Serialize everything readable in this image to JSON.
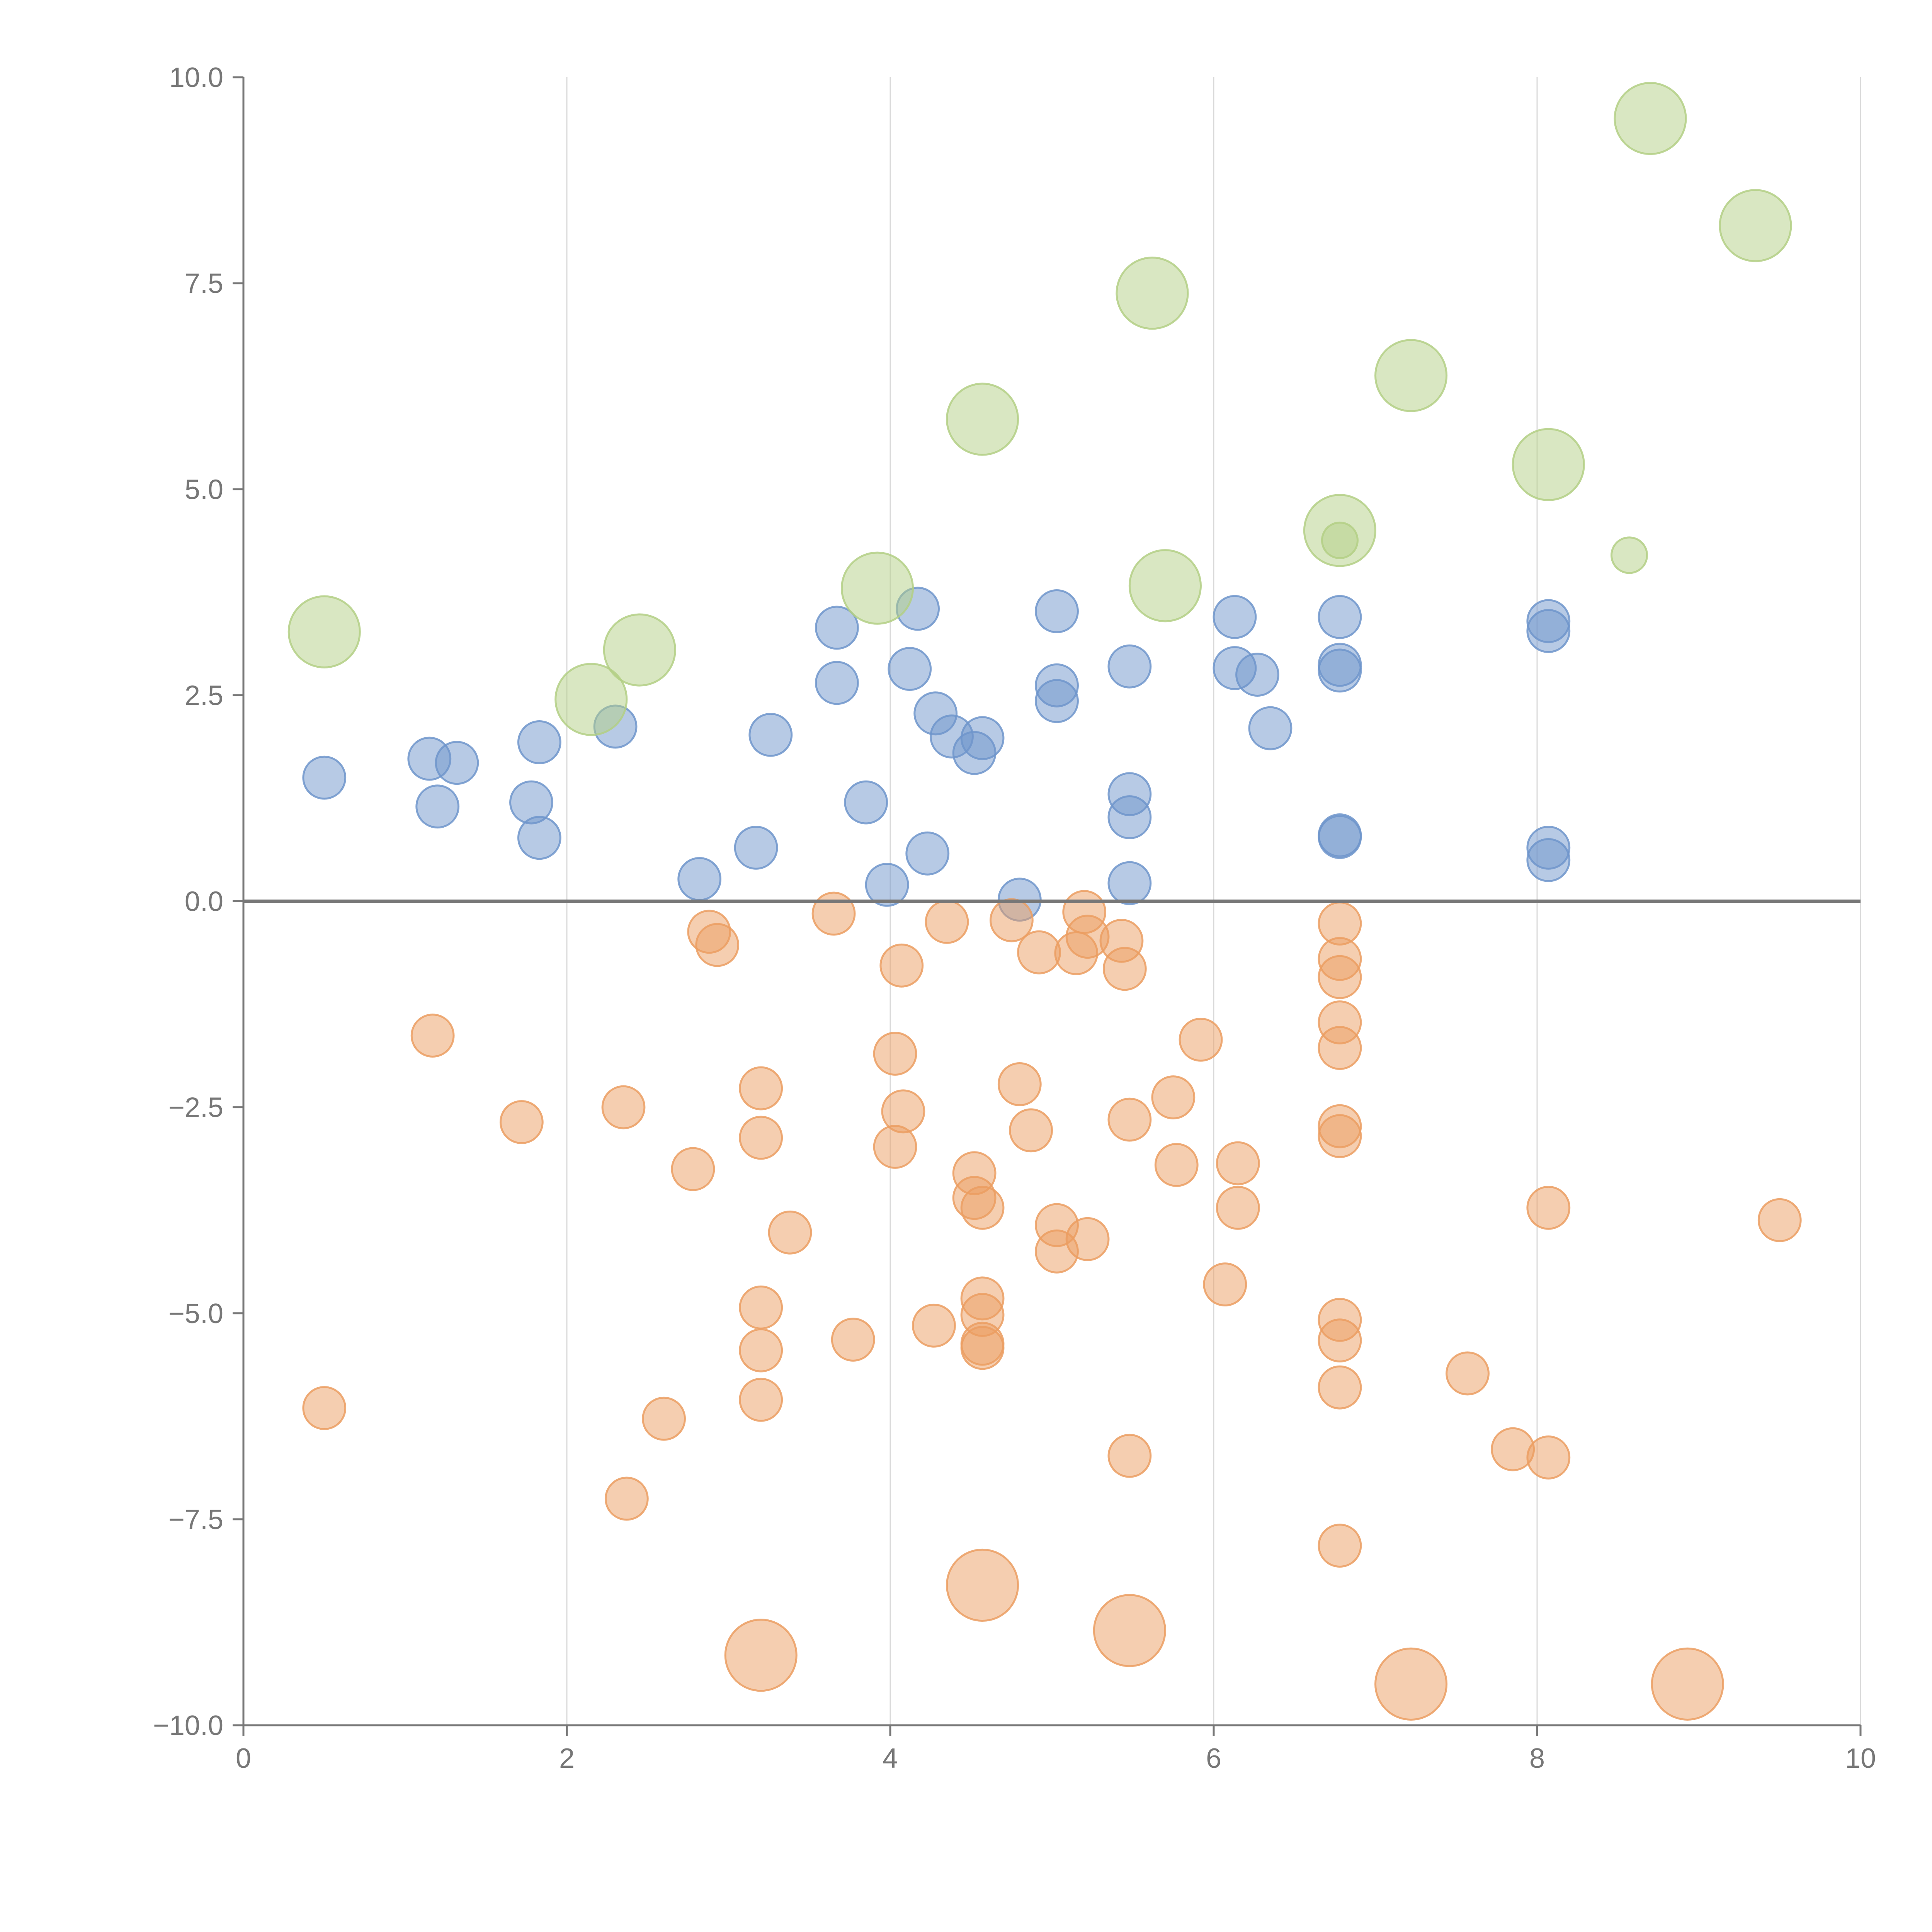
{
  "chart_data": {
    "type": "scatter",
    "title": "",
    "xlabel": "",
    "ylabel": "",
    "xlim": [
      0,
      10
    ],
    "ylim": [
      -10,
      10
    ],
    "x_ticks": [
      0,
      2,
      4,
      6,
      8,
      10
    ],
    "x_tick_labels": [
      "0",
      "2",
      "4",
      "6",
      "8",
      "10"
    ],
    "y_ticks": [
      -10,
      -7.5,
      -5,
      -2.5,
      0,
      2.5,
      5,
      7.5,
      10
    ],
    "y_tick_labels": [
      "−10.0",
      "−7.5",
      "−5.0",
      "−2.5",
      "0.0",
      "2.5",
      "5.0",
      "7.5",
      "10.0"
    ],
    "vertical_grid": true,
    "horizontal_grid": false,
    "zero_line": true,
    "series": [
      {
        "name": "blue",
        "color": "#6f95cb",
        "points": [
          [
            0.5,
            1.5,
            0.13
          ],
          [
            1.15,
            1.73,
            0.13
          ],
          [
            1.32,
            1.68,
            0.13
          ],
          [
            1.2,
            1.15,
            0.13
          ],
          [
            1.78,
            1.2,
            0.13
          ],
          [
            1.83,
            1.93,
            0.13
          ],
          [
            1.83,
            0.77,
            0.13
          ],
          [
            2.3,
            2.12,
            0.13
          ],
          [
            2.82,
            0.27,
            0.13
          ],
          [
            3.17,
            0.65,
            0.13
          ],
          [
            3.26,
            2.02,
            0.13
          ],
          [
            3.67,
            3.32,
            0.13
          ],
          [
            3.67,
            2.65,
            0.13
          ],
          [
            3.85,
            1.2,
            0.13
          ],
          [
            3.98,
            0.2,
            0.13
          ],
          [
            4.12,
            2.82,
            0.13
          ],
          [
            4.17,
            3.55,
            0.13
          ],
          [
            4.23,
            0.58,
            0.13
          ],
          [
            4.28,
            2.28,
            0.13
          ],
          [
            4.38,
            2.0,
            0.13
          ],
          [
            4.52,
            1.8,
            0.13
          ],
          [
            4.57,
            1.98,
            0.13
          ],
          [
            4.8,
            0.02,
            0.13
          ],
          [
            5.03,
            3.52,
            0.13
          ],
          [
            5.03,
            2.62,
            0.13
          ],
          [
            5.03,
            2.43,
            0.13
          ],
          [
            5.48,
            2.85,
            0.13
          ],
          [
            5.48,
            1.3,
            0.13
          ],
          [
            5.48,
            1.02,
            0.13
          ],
          [
            5.48,
            0.22,
            0.13
          ],
          [
            6.13,
            2.83,
            0.13
          ],
          [
            6.13,
            3.45,
            0.13
          ],
          [
            6.27,
            2.75,
            0.13
          ],
          [
            6.35,
            2.1,
            0.13
          ],
          [
            6.78,
            3.45,
            0.13
          ],
          [
            6.78,
            2.87,
            0.13
          ],
          [
            6.78,
            2.8,
            0.13
          ],
          [
            6.78,
            0.8,
            0.13
          ],
          [
            6.78,
            0.78,
            0.13
          ],
          [
            8.07,
            3.4,
            0.13
          ],
          [
            8.07,
            3.28,
            0.13
          ],
          [
            8.07,
            0.65,
            0.13
          ],
          [
            8.07,
            0.5,
            0.13
          ]
        ]
      },
      {
        "name": "orange",
        "color": "#eb9d62",
        "points": [
          [
            0.5,
            -6.15,
            0.13
          ],
          [
            1.17,
            -1.63,
            0.13
          ],
          [
            1.72,
            -2.68,
            0.13
          ],
          [
            2.35,
            -2.5,
            0.13
          ],
          [
            2.37,
            -7.25,
            0.13
          ],
          [
            2.6,
            -6.28,
            0.13
          ],
          [
            2.78,
            -3.25,
            0.13
          ],
          [
            2.88,
            -0.37,
            0.13
          ],
          [
            2.93,
            -0.53,
            0.13
          ],
          [
            3.2,
            -2.27,
            0.13
          ],
          [
            3.2,
            -2.87,
            0.13
          ],
          [
            3.2,
            -4.93,
            0.13
          ],
          [
            3.2,
            -5.45,
            0.13
          ],
          [
            3.2,
            -6.05,
            0.13
          ],
          [
            3.38,
            -4.02,
            0.13
          ],
          [
            3.65,
            -0.15,
            0.13
          ],
          [
            3.77,
            -5.32,
            0.13
          ],
          [
            4.03,
            -1.85,
            0.13
          ],
          [
            4.03,
            -2.98,
            0.13
          ],
          [
            4.07,
            -0.78,
            0.13
          ],
          [
            4.08,
            -2.55,
            0.13
          ],
          [
            4.27,
            -5.15,
            0.13
          ],
          [
            4.35,
            -0.25,
            0.13
          ],
          [
            4.52,
            -3.3,
            0.13
          ],
          [
            4.52,
            -3.6,
            0.13
          ],
          [
            4.57,
            -3.72,
            0.13
          ],
          [
            4.57,
            -4.82,
            0.13
          ],
          [
            4.57,
            -5.02,
            0.13
          ],
          [
            4.57,
            -5.37,
            0.13
          ],
          [
            4.57,
            -5.42,
            0.13
          ],
          [
            4.75,
            -0.23,
            0.13
          ],
          [
            4.8,
            -2.22,
            0.13
          ],
          [
            4.87,
            -2.78,
            0.13
          ],
          [
            4.92,
            -0.62,
            0.13
          ],
          [
            5.03,
            -3.93,
            0.13
          ],
          [
            5.03,
            -4.25,
            0.13
          ],
          [
            5.15,
            -0.63,
            0.13
          ],
          [
            5.2,
            -0.13,
            0.13
          ],
          [
            5.22,
            -4.1,
            0.13
          ],
          [
            5.22,
            -0.43,
            0.13
          ],
          [
            5.43,
            -0.48,
            0.13
          ],
          [
            5.45,
            -0.82,
            0.13
          ],
          [
            5.48,
            -2.65,
            0.13
          ],
          [
            5.48,
            -6.73,
            0.13
          ],
          [
            5.75,
            -2.38,
            0.13
          ],
          [
            5.77,
            -3.2,
            0.13
          ],
          [
            5.92,
            -1.68,
            0.13
          ],
          [
            6.07,
            -4.65,
            0.13
          ],
          [
            6.15,
            -3.18,
            0.13
          ],
          [
            6.15,
            -3.72,
            0.13
          ],
          [
            6.78,
            -0.27,
            0.13
          ],
          [
            6.78,
            -0.7,
            0.13
          ],
          [
            6.78,
            -0.92,
            0.13
          ],
          [
            6.78,
            -1.47,
            0.13
          ],
          [
            6.78,
            -1.78,
            0.13
          ],
          [
            6.78,
            -2.73,
            0.13
          ],
          [
            6.78,
            -2.85,
            0.13
          ],
          [
            6.78,
            -5.08,
            0.13
          ],
          [
            6.78,
            -5.33,
            0.13
          ],
          [
            6.78,
            -5.9,
            0.13
          ],
          [
            6.78,
            -7.82,
            0.13
          ],
          [
            7.57,
            -5.73,
            0.13
          ],
          [
            7.85,
            -6.65,
            0.13
          ],
          [
            8.07,
            -3.72,
            0.13
          ],
          [
            8.07,
            -6.75,
            0.13
          ],
          [
            9.5,
            -3.87,
            0.13
          ],
          [
            3.2,
            -9.15,
            0.22
          ],
          [
            4.57,
            -8.3,
            0.22
          ],
          [
            5.48,
            -8.85,
            0.22
          ],
          [
            7.22,
            -9.5,
            0.22
          ],
          [
            8.93,
            -9.5,
            0.22
          ]
        ]
      },
      {
        "name": "green",
        "color": "#b3cf85",
        "points": [
          [
            0.5,
            3.27,
            0.22
          ],
          [
            2.15,
            2.45,
            0.22
          ],
          [
            2.45,
            3.05,
            0.22
          ],
          [
            3.92,
            3.8,
            0.22
          ],
          [
            4.57,
            5.85,
            0.22
          ],
          [
            5.62,
            7.38,
            0.22
          ],
          [
            5.7,
            3.83,
            0.22
          ],
          [
            6.78,
            4.5,
            0.22
          ],
          [
            6.78,
            4.38,
            0.11
          ],
          [
            7.22,
            6.38,
            0.22
          ],
          [
            8.07,
            5.3,
            0.22
          ],
          [
            8.57,
            4.2,
            0.11
          ],
          [
            8.7,
            9.5,
            0.22
          ],
          [
            9.35,
            8.2,
            0.22
          ]
        ]
      }
    ]
  }
}
